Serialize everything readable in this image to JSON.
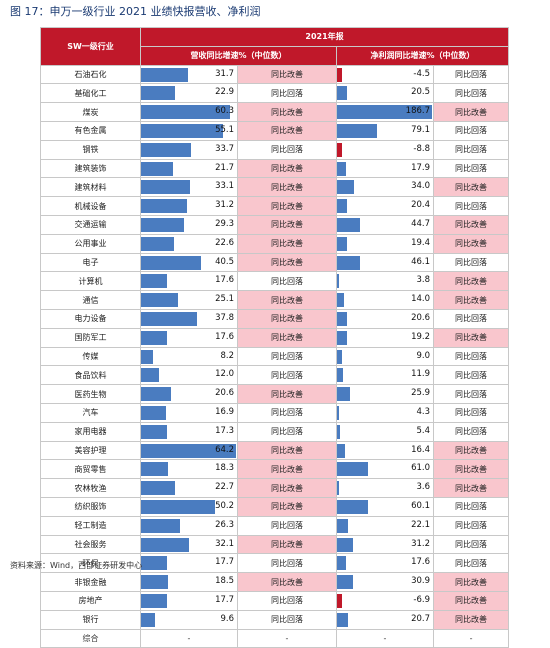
{
  "title": "图 17：申万一级行业 2021 业绩快报营收、净利润",
  "source": "资料来源：Wind，西部证券研发中心",
  "header": {
    "industry": "SW一级行业",
    "period": "2021年报",
    "rev": "营收同比增速%（中位数）",
    "np": "净利润同比增速%（中位数）"
  },
  "status_colors": {
    "improve": "#f9c6cd",
    "decline": "#ffffff",
    "bar": "#4a7cc0",
    "negative_bar": "#c0182a",
    "header": "#c0182a"
  },
  "rows": [
    {
      "name": "石油石化",
      "rev": "31.7",
      "rev_status": "同比改善",
      "np": "-4.5",
      "np_status": "同比回落"
    },
    {
      "name": "基础化工",
      "rev": "22.9",
      "rev_status": "同比回落",
      "np": "20.5",
      "np_status": "同比回落"
    },
    {
      "name": "煤炭",
      "rev": "60.3",
      "rev_status": "同比改善",
      "np": "186.7",
      "np_status": "同比改善"
    },
    {
      "name": "有色金属",
      "rev": "55.1",
      "rev_status": "同比改善",
      "np": "79.1",
      "np_status": "同比回落"
    },
    {
      "name": "钢铁",
      "rev": "33.7",
      "rev_status": "同比回落",
      "np": "-8.8",
      "np_status": "同比回落"
    },
    {
      "name": "建筑装饰",
      "rev": "21.7",
      "rev_status": "同比改善",
      "np": "17.9",
      "np_status": "同比回落"
    },
    {
      "name": "建筑材料",
      "rev": "33.1",
      "rev_status": "同比改善",
      "np": "34.0",
      "np_status": "同比改善"
    },
    {
      "name": "机械设备",
      "rev": "31.2",
      "rev_status": "同比改善",
      "np": "20.4",
      "np_status": "同比回落"
    },
    {
      "name": "交通运输",
      "rev": "29.3",
      "rev_status": "同比改善",
      "np": "44.7",
      "np_status": "同比改善"
    },
    {
      "name": "公用事业",
      "rev": "22.6",
      "rev_status": "同比改善",
      "np": "19.4",
      "np_status": "同比改善"
    },
    {
      "name": "电子",
      "rev": "40.5",
      "rev_status": "同比改善",
      "np": "46.1",
      "np_status": "同比回落"
    },
    {
      "name": "计算机",
      "rev": "17.6",
      "rev_status": "同比回落",
      "np": "3.8",
      "np_status": "同比改善"
    },
    {
      "name": "通信",
      "rev": "25.1",
      "rev_status": "同比改善",
      "np": "14.0",
      "np_status": "同比改善"
    },
    {
      "name": "电力设备",
      "rev": "37.8",
      "rev_status": "同比改善",
      "np": "20.6",
      "np_status": "同比回落"
    },
    {
      "name": "国防军工",
      "rev": "17.6",
      "rev_status": "同比改善",
      "np": "19.2",
      "np_status": "同比改善"
    },
    {
      "name": "传媒",
      "rev": "8.2",
      "rev_status": "同比回落",
      "np": "9.0",
      "np_status": "同比回落"
    },
    {
      "name": "食品饮料",
      "rev": "12.0",
      "rev_status": "同比回落",
      "np": "11.9",
      "np_status": "同比回落"
    },
    {
      "name": "医药生物",
      "rev": "20.6",
      "rev_status": "同比改善",
      "np": "25.9",
      "np_status": "同比回落"
    },
    {
      "name": "汽车",
      "rev": "16.9",
      "rev_status": "同比回落",
      "np": "4.3",
      "np_status": "同比回落"
    },
    {
      "name": "家用电器",
      "rev": "17.3",
      "rev_status": "同比回落",
      "np": "5.4",
      "np_status": "同比回落"
    },
    {
      "name": "美容护理",
      "rev": "64.2",
      "rev_status": "同比改善",
      "np": "16.4",
      "np_status": "同比改善"
    },
    {
      "name": "商贸零售",
      "rev": "18.3",
      "rev_status": "同比改善",
      "np": "61.0",
      "np_status": "同比改善"
    },
    {
      "name": "农林牧渔",
      "rev": "22.7",
      "rev_status": "同比改善",
      "np": "3.6",
      "np_status": "同比改善"
    },
    {
      "name": "纺织服饰",
      "rev": "50.2",
      "rev_status": "同比改善",
      "np": "60.1",
      "np_status": "同比回落"
    },
    {
      "name": "轻工制造",
      "rev": "26.3",
      "rev_status": "同比回落",
      "np": "22.1",
      "np_status": "同比回落"
    },
    {
      "name": "社会服务",
      "rev": "32.1",
      "rev_status": "同比改善",
      "np": "31.2",
      "np_status": "同比回落"
    },
    {
      "name": "环保",
      "rev": "17.7",
      "rev_status": "同比回落",
      "np": "17.6",
      "np_status": "同比回落"
    },
    {
      "name": "非银金融",
      "rev": "18.5",
      "rev_status": "同比改善",
      "np": "30.9",
      "np_status": "同比改善"
    },
    {
      "name": "房地产",
      "rev": "17.7",
      "rev_status": "同比回落",
      "np": "-6.9",
      "np_status": "同比改善"
    },
    {
      "name": "银行",
      "rev": "9.6",
      "rev_status": "同比回落",
      "np": "20.7",
      "np_status": "同比改善"
    }
  ],
  "total": {
    "name": "综合",
    "rev": "-",
    "rev_status": "-",
    "np": "-",
    "np_status": "-"
  }
}
